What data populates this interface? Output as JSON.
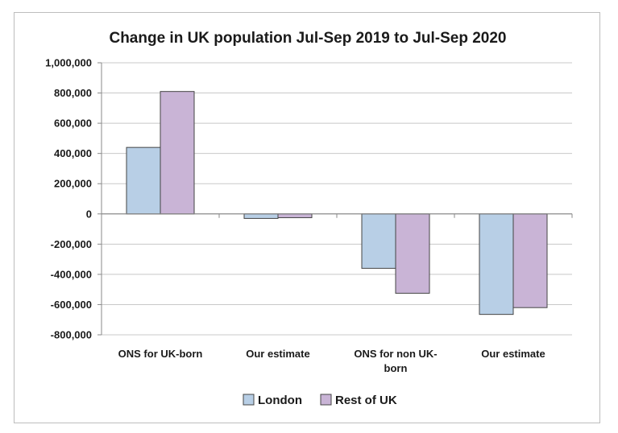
{
  "chart_data": {
    "type": "bar",
    "title": "Change in UK population Jul-Sep 2019 to Jul-Sep 2020",
    "xlabel": "",
    "ylabel": "",
    "ylim": [
      -800000,
      1000000
    ],
    "y_ticks": [
      1000000,
      800000,
      600000,
      400000,
      200000,
      0,
      -200000,
      -400000,
      -600000,
      -800000
    ],
    "y_tick_labels": [
      "1,000,000",
      "800,000",
      "600,000",
      "400,000",
      "200,000",
      "0",
      "-200,000",
      "-400,000",
      "-600,000",
      "-800,000"
    ],
    "categories": [
      [
        "ONS for UK-born"
      ],
      [
        "Our estimate"
      ],
      [
        "ONS for non UK-",
        "born"
      ],
      [
        "Our estimate"
      ]
    ],
    "series": [
      {
        "name": "London",
        "color": "#b8cfe6",
        "values": [
          440000,
          -30000,
          -360000,
          -665000
        ]
      },
      {
        "name": "Rest of UK",
        "color": "#c9b4d6",
        "values": [
          810000,
          -25000,
          -525000,
          -620000
        ]
      }
    ],
    "grid": true,
    "legend_position": "bottom"
  }
}
